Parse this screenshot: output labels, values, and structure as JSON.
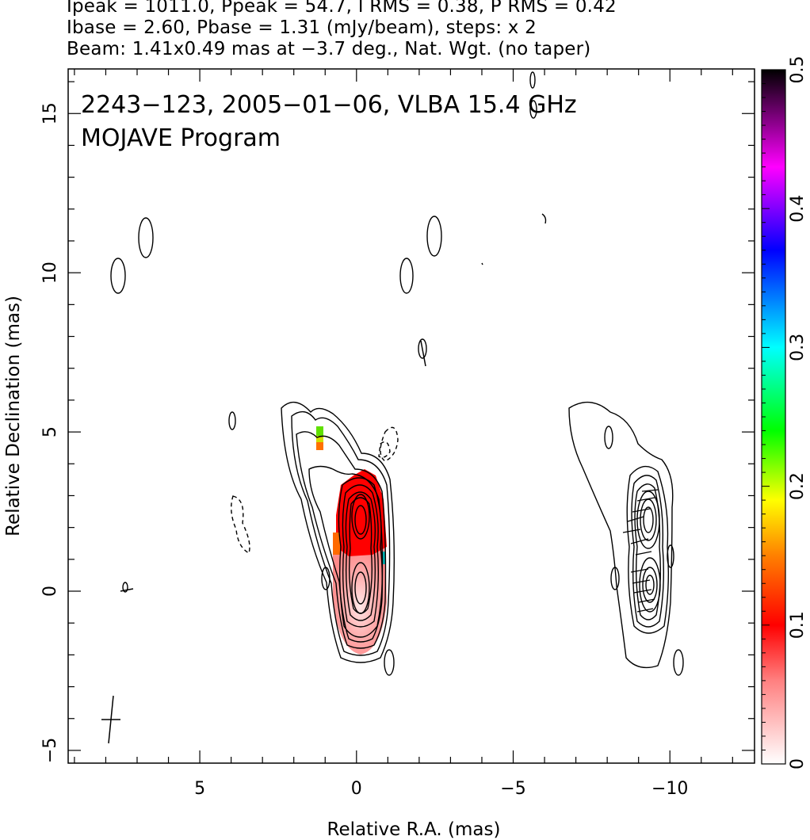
{
  "header": {
    "line1": "Ipeak = 1011.0, Ppeak = 54.7, I RMS = 0.38, P RMS = 0.42",
    "line2": "Ibase = 2.60, Pbase = 1.31 (mJy/beam), steps: x 2",
    "line3": "Beam: 1.41x0.49 mas at −3.7 deg., Nat. Wgt. (no taper)"
  },
  "chart_data": {
    "type": "heatmap",
    "title_line1": "2243−123, 2005−01−06, VLBA 15.4 GHz",
    "title_line2": "MOJAVE Program",
    "xlabel": "Relative R.A. (mas)",
    "ylabel": "Relative Declination (mas)",
    "xlim": [
      9.2,
      -12.7
    ],
    "ylim": [
      -5.4,
      16.4
    ],
    "x_ticks": [
      5,
      0,
      -5,
      -10
    ],
    "x_tick_labels": [
      "5",
      "0",
      "−5",
      "−10"
    ],
    "y_ticks": [
      -5,
      0,
      5,
      10,
      15
    ],
    "y_tick_labels": [
      "−5",
      "0",
      "5",
      "10",
      "15"
    ],
    "colorbar": {
      "range": [
        0,
        0.5
      ],
      "ticks": [
        0,
        0.1,
        0.2,
        0.3,
        0.4,
        0.5
      ],
      "tick_labels": [
        "0",
        "0.1",
        "0.2",
        "0.3",
        "0.4",
        "0.5"
      ],
      "colors": [
        "#ffffff",
        "#ff0000",
        "#ff8000",
        "#ffff00",
        "#00ff00",
        "#00ffff",
        "#0000ff",
        "#ff00ff",
        "#000000"
      ]
    },
    "maps": [
      {
        "name": "left",
        "offset_ra": 0
      },
      {
        "name": "right",
        "offset_ra": -9.0
      }
    ],
    "core_components": [
      {
        "ra": 0.0,
        "dec": 2.3
      },
      {
        "ra": 0.0,
        "dec": 0.2
      }
    ],
    "beam": {
      "ra": 7.9,
      "dec": -4.0,
      "major": 1.41,
      "minor": 0.49,
      "pa_deg": -3.7
    }
  }
}
